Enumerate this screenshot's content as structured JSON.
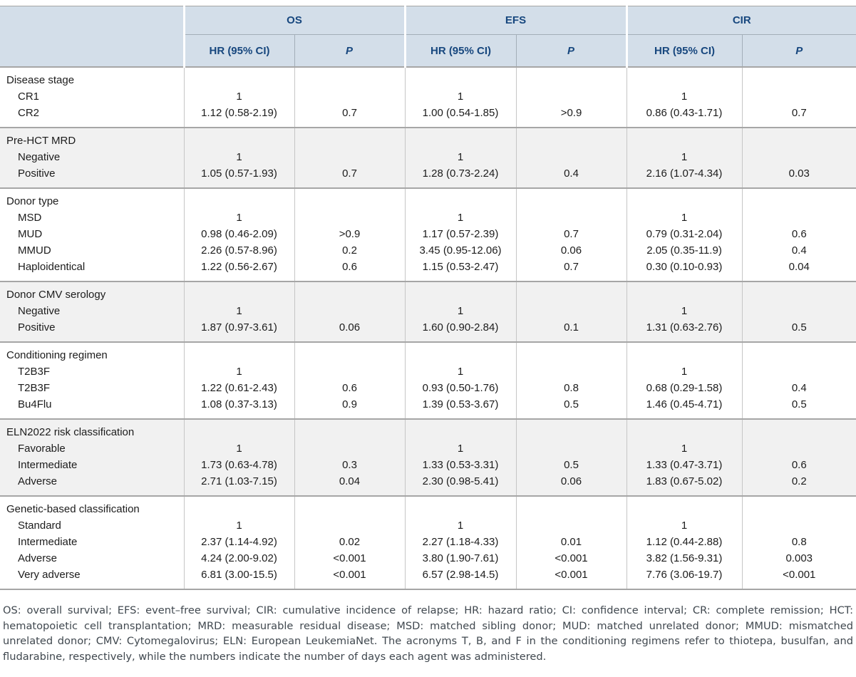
{
  "colors": {
    "header_bg": "#d3dee9",
    "header_text": "#17477e",
    "stripe_bg": "#f1f1f1",
    "heavy_rule": "#a6a6a6",
    "light_rule": "#c6c6c6",
    "footnote_text": "#40484f"
  },
  "table": {
    "column_groups": [
      {
        "label": "OS"
      },
      {
        "label": "EFS"
      },
      {
        "label": "CIR"
      }
    ],
    "sub_headers": {
      "hr": "HR (95% CI)",
      "p": "P"
    },
    "groups": [
      {
        "label": "Disease stage",
        "rows": [
          {
            "label": "CR1",
            "os_hr": "1",
            "os_p": "",
            "efs_hr": "1",
            "efs_p": "",
            "cir_hr": "1",
            "cir_p": ""
          },
          {
            "label": "CR2",
            "os_hr": "1.12 (0.58-2.19)",
            "os_p": "0.7",
            "efs_hr": "1.00 (0.54-1.85)",
            "efs_p": ">0.9",
            "cir_hr": "0.86 (0.43-1.71)",
            "cir_p": "0.7"
          }
        ]
      },
      {
        "label": "Pre-HCT MRD",
        "rows": [
          {
            "label": "Negative",
            "os_hr": "1",
            "os_p": "",
            "efs_hr": "1",
            "efs_p": "",
            "cir_hr": "1",
            "cir_p": ""
          },
          {
            "label": "Positive",
            "os_hr": "1.05 (0.57-1.93)",
            "os_p": "0.7",
            "efs_hr": "1.28 (0.73-2.24)",
            "efs_p": "0.4",
            "cir_hr": "2.16 (1.07-4.34)",
            "cir_p": "0.03"
          }
        ]
      },
      {
        "label": "Donor type",
        "rows": [
          {
            "label": "MSD",
            "os_hr": "1",
            "os_p": "",
            "efs_hr": "1",
            "efs_p": "",
            "cir_hr": "1",
            "cir_p": ""
          },
          {
            "label": "MUD",
            "os_hr": "0.98 (0.46-2.09)",
            "os_p": ">0.9",
            "efs_hr": "1.17 (0.57-2.39)",
            "efs_p": "0.7",
            "cir_hr": "0.79 (0.31-2.04)",
            "cir_p": "0.6"
          },
          {
            "label": "MMUD",
            "os_hr": "2.26 (0.57-8.96)",
            "os_p": "0.2",
            "efs_hr": "3.45 (0.95-12.06)",
            "efs_p": "0.06",
            "cir_hr": "2.05 (0.35-11.9)",
            "cir_p": "0.4"
          },
          {
            "label": "Haploidentical",
            "os_hr": "1.22 (0.56-2.67)",
            "os_p": "0.6",
            "efs_hr": "1.15 (0.53-2.47)",
            "efs_p": "0.7",
            "cir_hr": "0.30 (0.10-0.93)",
            "cir_p": "0.04"
          }
        ]
      },
      {
        "label": "Donor CMV serology",
        "rows": [
          {
            "label": "Negative",
            "os_hr": "1",
            "os_p": "",
            "efs_hr": "1",
            "efs_p": "",
            "cir_hr": "1",
            "cir_p": ""
          },
          {
            "label": "Positive",
            "os_hr": "1.87 (0.97-3.61)",
            "os_p": "0.06",
            "efs_hr": "1.60 (0.90-2.84)",
            "efs_p": "0.1",
            "cir_hr": "1.31 (0.63-2.76)",
            "cir_p": "0.5"
          }
        ]
      },
      {
        "label": "Conditioning regimen",
        "rows": [
          {
            "label": "T2B3F",
            "os_hr": "1",
            "os_p": "",
            "efs_hr": "1",
            "efs_p": "",
            "cir_hr": "1",
            "cir_p": ""
          },
          {
            "label": "T2B3F",
            "os_hr": "1.22 (0.61-2.43)",
            "os_p": "0.6",
            "efs_hr": "0.93 (0.50-1.76)",
            "efs_p": "0.8",
            "cir_hr": "0.68 (0.29-1.58)",
            "cir_p": "0.4"
          },
          {
            "label": "Bu4Flu",
            "os_hr": "1.08 (0.37-3.13)",
            "os_p": "0.9",
            "efs_hr": "1.39 (0.53-3.67)",
            "efs_p": "0.5",
            "cir_hr": "1.46 (0.45-4.71)",
            "cir_p": "0.5"
          }
        ]
      },
      {
        "label": "ELN2022 risk classification",
        "rows": [
          {
            "label": "Favorable",
            "os_hr": "1",
            "os_p": "",
            "efs_hr": "1",
            "efs_p": "",
            "cir_hr": "1",
            "cir_p": ""
          },
          {
            "label": "Intermediate",
            "os_hr": "1.73 (0.63-4.78)",
            "os_p": "0.3",
            "efs_hr": "1.33 (0.53-3.31)",
            "efs_p": "0.5",
            "cir_hr": "1.33 (0.47-3.71)",
            "cir_p": "0.6"
          },
          {
            "label": "Adverse",
            "os_hr": "2.71 (1.03-7.15)",
            "os_p": "0.04",
            "efs_hr": "2.30 (0.98-5.41)",
            "efs_p": "0.06",
            "cir_hr": "1.83 (0.67-5.02)",
            "cir_p": "0.2"
          }
        ]
      },
      {
        "label": "Genetic-based classification",
        "rows": [
          {
            "label": "Standard",
            "os_hr": "1",
            "os_p": "",
            "efs_hr": "1",
            "efs_p": "",
            "cir_hr": "1",
            "cir_p": ""
          },
          {
            "label": "Intermediate",
            "os_hr": "2.37 (1.14-4.92)",
            "os_p": "0.02",
            "efs_hr": "2.27 (1.18-4.33)",
            "efs_p": "0.01",
            "cir_hr": "1.12 (0.44-2.88)",
            "cir_p": "0.8"
          },
          {
            "label": "Adverse",
            "os_hr": "4.24 (2.00-9.02)",
            "os_p": "<0.001",
            "efs_hr": "3.80 (1.90-7.61)",
            "efs_p": "<0.001",
            "cir_hr": "3.82 (1.56-9.31)",
            "cir_p": "0.003"
          },
          {
            "label": "Very adverse",
            "os_hr": "6.81 (3.00-15.5)",
            "os_p": "<0.001",
            "efs_hr": "6.57 (2.98-14.5)",
            "efs_p": "<0.001",
            "cir_hr": "7.76 (3.06-19.7)",
            "cir_p": "<0.001"
          }
        ]
      }
    ]
  },
  "footnote": {
    "text": "OS: overall survival; EFS: event–free survival; CIR: cumulative incidence of relapse; HR: hazard ratio; CI: confidence interval; CR: complete remission; HCT: hematopoietic cell transplantation; MRD: measurable residual disease; MSD: matched sibling donor; MUD: matched unrelated donor; MMUD: mismatched unrelated donor; CMV: Cytomegalovirus; ELN: European LeukemiaNet. The acronyms T, B, and F in the conditioning regimens refer to thiotepa, busulfan, and fludarabine, respectively, while the numbers indicate the number of days each agent was administered."
  }
}
